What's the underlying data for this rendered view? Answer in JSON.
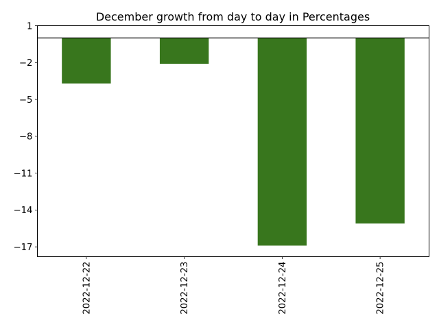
{
  "chart_data": {
    "type": "bar",
    "title": "December growth from day to day in Percentages",
    "xlabel": "",
    "ylabel": "",
    "categories": [
      "2022-12-22",
      "2022-12-23",
      "2022-12-24",
      "2022-12-25"
    ],
    "values": [
      -3.7,
      -2.1,
      -16.9,
      -15.1
    ],
    "ylim": [
      -17.8,
      1
    ],
    "yticks": [
      1,
      -2,
      -5,
      -8,
      -11,
      -14,
      -17
    ],
    "ytick_labels": [
      "1",
      "−2",
      "−5",
      "−8",
      "−11",
      "−14",
      "−17"
    ],
    "baseline": 0,
    "bar_color": "#38761d",
    "grid": false,
    "legend": "none",
    "xtick_rotation": "vertical"
  }
}
